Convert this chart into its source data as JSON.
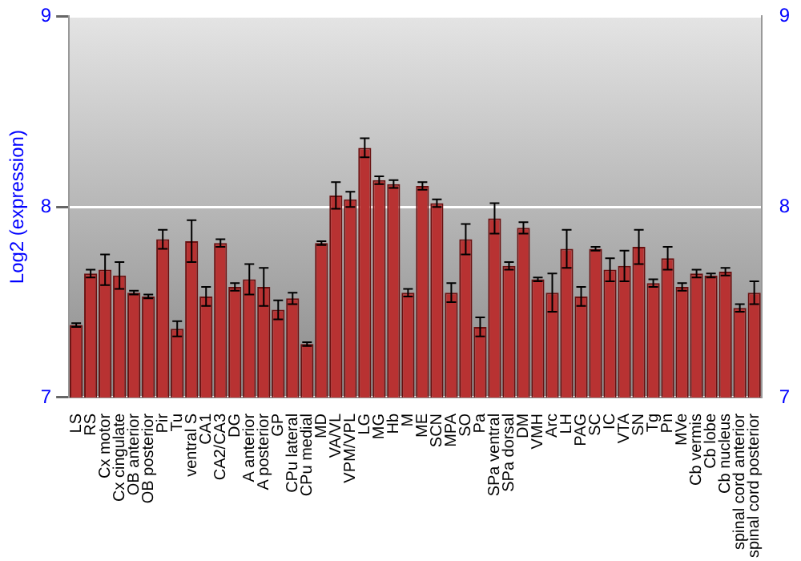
{
  "chart_data": {
    "type": "bar",
    "ylabel": "Log2 (expression)",
    "categories": [
      "LS",
      "RS",
      "Cx motor",
      "Cx cingulate",
      "OB anterior",
      "OB posterior",
      "Pir",
      "Tu",
      "ventral S",
      "CA1",
      "CA2/CA3",
      "DG",
      "A anterior",
      "A posterior",
      "GP",
      "CPu lateral",
      "CPu medial",
      "MD",
      "VA/VL",
      "VPM/VPL",
      "LG",
      "MG",
      "Hb",
      "M",
      "ME",
      "SCN",
      "MPA",
      "SO",
      "Pa",
      "SPa ventral",
      "SPa dorsal",
      "DM",
      "VMH",
      "Arc",
      "LH",
      "PAG",
      "SC",
      "IC",
      "VTA",
      "SN",
      "Tg",
      "Pn",
      "MVe",
      "Cb vermis",
      "Cb lobe",
      "Cb nucleus",
      "spinal cord anterior",
      "spinal cord posterior"
    ],
    "values": [
      7.38,
      7.65,
      7.67,
      7.64,
      7.55,
      7.53,
      7.83,
      7.36,
      7.82,
      7.53,
      7.81,
      7.58,
      7.62,
      7.58,
      7.46,
      7.52,
      7.28,
      7.81,
      8.06,
      8.04,
      8.31,
      8.14,
      8.12,
      7.55,
      8.11,
      8.02,
      7.55,
      7.83,
      7.37,
      7.94,
      7.69,
      7.89,
      7.62,
      7.55,
      7.78,
      7.53,
      7.78,
      7.67,
      7.69,
      7.79,
      7.6,
      7.73,
      7.58,
      7.65,
      7.64,
      7.66,
      7.47,
      7.55
    ],
    "errors": [
      0.01,
      0.02,
      0.08,
      0.07,
      0.01,
      0.01,
      0.05,
      0.04,
      0.11,
      0.05,
      0.02,
      0.02,
      0.08,
      0.1,
      0.05,
      0.03,
      0.01,
      0.01,
      0.07,
      0.04,
      0.05,
      0.02,
      0.02,
      0.02,
      0.02,
      0.02,
      0.05,
      0.08,
      0.05,
      0.08,
      0.02,
      0.03,
      0.01,
      0.1,
      0.1,
      0.05,
      0.01,
      0.06,
      0.08,
      0.09,
      0.02,
      0.06,
      0.02,
      0.02,
      0.01,
      0.02,
      0.02,
      0.06
    ],
    "color": "#b83232",
    "ylim": [
      7,
      9
    ],
    "yticks": [
      7,
      8,
      9
    ],
    "y2lim": [
      7,
      9
    ],
    "y2ticks": [
      7,
      8,
      9
    ],
    "grid": "y",
    "legend": false
  }
}
